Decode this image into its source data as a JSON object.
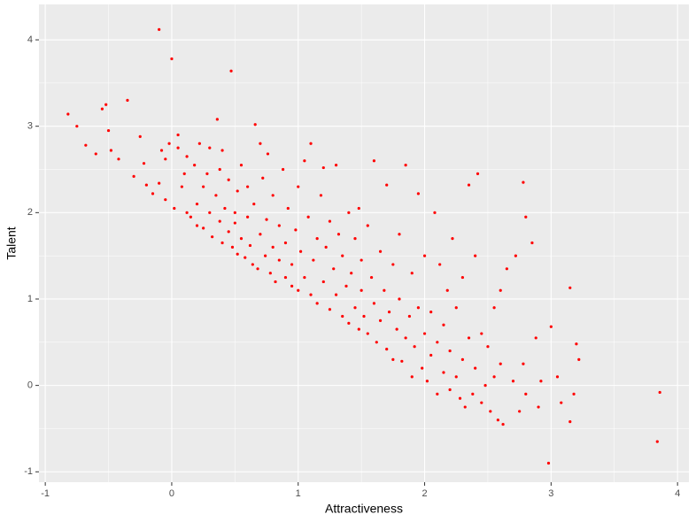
{
  "chart_data": {
    "type": "scatter",
    "x_label": "Attractiveness",
    "y_label": "Talent",
    "xlim": [
      -1.05,
      4.09
    ],
    "ylim": [
      -1.12,
      4.41
    ],
    "xticks": [
      -1,
      0,
      1,
      2,
      3,
      4
    ],
    "yticks": [
      -1,
      0,
      1,
      2,
      3,
      4
    ],
    "grid": true,
    "color": "#ff0000",
    "x": [
      -0.82,
      -0.75,
      -0.68,
      -0.6,
      -0.55,
      -0.52,
      -0.5,
      -0.48,
      -0.42,
      -0.35,
      -0.3,
      -0.25,
      -0.22,
      -0.2,
      -0.15,
      -0.1,
      -0.1,
      -0.08,
      -0.05,
      -0.05,
      -0.02,
      0,
      0.02,
      0.05,
      0.05,
      0.08,
      0.1,
      0.12,
      0.12,
      0.15,
      0.18,
      0.2,
      0.2,
      0.22,
      0.25,
      0.25,
      0.28,
      0.3,
      0.3,
      0.32,
      0.35,
      0.36,
      0.38,
      0.38,
      0.4,
      0.4,
      0.42,
      0.45,
      0.45,
      0.47,
      0.48,
      0.5,
      0.5,
      0.52,
      0.52,
      0.55,
      0.55,
      0.58,
      0.6,
      0.6,
      0.62,
      0.64,
      0.65,
      0.66,
      0.68,
      0.7,
      0.7,
      0.72,
      0.74,
      0.75,
      0.76,
      0.78,
      0.8,
      0.8,
      0.82,
      0.85,
      0.85,
      0.88,
      0.9,
      0.9,
      0.92,
      0.95,
      0.95,
      0.98,
      1.0,
      1.0,
      1.02,
      1.05,
      1.05,
      1.08,
      1.1,
      1.1,
      1.12,
      1.15,
      1.15,
      1.18,
      1.2,
      1.2,
      1.22,
      1.25,
      1.25,
      1.28,
      1.3,
      1.3,
      1.32,
      1.35,
      1.35,
      1.38,
      1.4,
      1.4,
      1.42,
      1.45,
      1.45,
      1.48,
      1.48,
      1.5,
      1.5,
      1.52,
      1.55,
      1.55,
      1.58,
      1.6,
      1.6,
      1.62,
      1.65,
      1.65,
      1.68,
      1.7,
      1.7,
      1.72,
      1.75,
      1.75,
      1.78,
      1.8,
      1.8,
      1.82,
      1.85,
      1.85,
      1.88,
      1.9,
      1.9,
      1.92,
      1.95,
      1.95,
      1.98,
      2.0,
      2.0,
      2.02,
      2.05,
      2.05,
      2.08,
      2.1,
      2.1,
      2.12,
      2.15,
      2.15,
      2.18,
      2.2,
      2.2,
      2.22,
      2.25,
      2.25,
      2.28,
      2.3,
      2.3,
      2.32,
      2.35,
      2.35,
      2.38,
      2.4,
      2.4,
      2.42,
      2.45,
      2.45,
      2.48,
      2.5,
      2.52,
      2.55,
      2.55,
      2.58,
      2.6,
      2.6,
      2.62,
      2.65,
      2.7,
      2.72,
      2.75,
      2.78,
      2.78,
      2.8,
      2.8,
      2.85,
      2.88,
      2.9,
      2.92,
      2.98,
      3.0,
      3.05,
      3.08,
      3.15,
      3.15,
      3.18,
      3.2,
      3.22,
      3.84,
      3.86
    ],
    "values": [
      3.14,
      3.0,
      2.78,
      2.68,
      3.2,
      3.25,
      2.95,
      2.72,
      2.62,
      3.3,
      2.42,
      2.88,
      2.57,
      2.32,
      2.22,
      4.12,
      2.34,
      2.72,
      2.15,
      2.62,
      2.8,
      3.78,
      2.05,
      2.9,
      2.75,
      2.3,
      2.45,
      2.0,
      2.65,
      1.95,
      2.55,
      2.1,
      1.85,
      2.8,
      2.3,
      1.82,
      2.45,
      2.0,
      2.75,
      1.72,
      2.2,
      3.08,
      1.9,
      2.5,
      1.65,
      2.72,
      2.05,
      1.78,
      2.38,
      3.64,
      1.6,
      2.0,
      1.88,
      1.52,
      2.25,
      1.7,
      2.55,
      1.48,
      1.95,
      2.3,
      1.62,
      1.4,
      2.1,
      3.02,
      1.35,
      1.75,
      2.8,
      2.4,
      1.5,
      1.92,
      2.68,
      1.3,
      1.6,
      2.2,
      1.2,
      1.45,
      1.85,
      2.5,
      1.25,
      1.65,
      2.05,
      1.15,
      1.4,
      1.8,
      1.1,
      2.3,
      1.55,
      1.25,
      2.6,
      1.95,
      1.05,
      2.8,
      1.45,
      1.7,
      0.95,
      2.2,
      1.2,
      2.52,
      1.6,
      0.88,
      1.9,
      1.35,
      1.05,
      2.55,
      1.75,
      0.8,
      1.5,
      1.15,
      2.0,
      0.72,
      1.3,
      0.9,
      1.7,
      0.65,
      2.05,
      1.1,
      1.45,
      0.8,
      1.85,
      0.6,
      1.25,
      0.95,
      2.6,
      0.5,
      1.55,
      0.75,
      1.1,
      0.42,
      2.32,
      0.85,
      1.4,
      0.3,
      0.65,
      1.0,
      1.75,
      0.28,
      0.55,
      2.55,
      0.8,
      0.1,
      1.3,
      0.45,
      0.9,
      2.22,
      0.2,
      0.6,
      1.5,
      0.05,
      0.35,
      0.85,
      2.0,
      -0.1,
      0.5,
      1.4,
      0.15,
      0.7,
      1.1,
      -0.05,
      0.4,
      1.7,
      0.1,
      0.9,
      -0.15,
      0.3,
      1.25,
      -0.25,
      0.55,
      2.32,
      -0.1,
      0.2,
      1.5,
      2.45,
      0.6,
      -0.2,
      0.0,
      0.45,
      -0.3,
      0.1,
      0.9,
      -0.4,
      1.1,
      0.25,
      -0.45,
      1.35,
      0.05,
      1.5,
      -0.3,
      2.35,
      0.25,
      -0.1,
      1.95,
      1.65,
      0.55,
      -0.25,
      0.05,
      -0.9,
      0.68,
      0.1,
      -0.2,
      1.13,
      -0.42,
      -0.1,
      0.48,
      0.3,
      -0.65,
      -0.08
    ]
  }
}
